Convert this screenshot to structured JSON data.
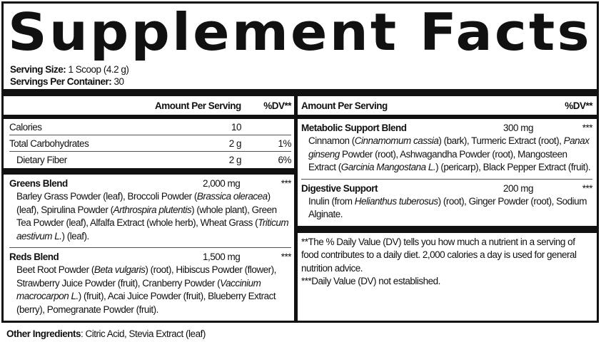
{
  "title": "Supplement Facts",
  "serving_size": {
    "label": "Serving Size:",
    "value": " 1 Scoop (4.2 g)"
  },
  "servings_per_container": {
    "label": "Servings Per Container:",
    "value": " 30"
  },
  "left": {
    "header": {
      "amount": "Amount Per Serving",
      "dv": "%DV**"
    },
    "rows": [
      {
        "name": "Calories",
        "amount": "10",
        "dv": ""
      },
      {
        "name": "Total Carbohydrates",
        "amount": "2 g",
        "dv": "1%"
      },
      {
        "name": "Dietary Fiber",
        "amount": "2 g",
        "dv": "6%"
      }
    ],
    "blends": [
      {
        "name": "Greens Blend",
        "amount": "2,000 mg",
        "dv": "***",
        "ingredients": [
          {
            "t": "Barley Grass Powder (leaf), Broccoli Powder ("
          },
          {
            "t": "Brassica oleracea",
            "i": true
          },
          {
            "t": ") (leaf), Spirulina Powder ("
          },
          {
            "t": "Arthrospira plutentis",
            "i": true
          },
          {
            "t": ") (whole plant), Green Tea Powder (leaf), Alfalfa Extract (whole herb), Wheat Grass ("
          },
          {
            "t": "Triticum aestivum L.",
            "i": true
          },
          {
            "t": ") (leaf)."
          }
        ]
      },
      {
        "name": "Reds Blend",
        "amount": "1,500 mg",
        "dv": "***",
        "ingredients": [
          {
            "t": "Beet Root Powder ("
          },
          {
            "t": "Beta vulgaris",
            "i": true
          },
          {
            "t": ") (root), Hibiscus Powder (flower), Strawberry Juice Powder (fruit), Cranberry Powder ("
          },
          {
            "t": "Vaccinium macrocarpon L.",
            "i": true
          },
          {
            "t": ") (fruit), Acai Juice Powder (fruit), Blueberry Extract (berry), Pomegranate Powder (fruit)."
          }
        ]
      }
    ]
  },
  "right": {
    "header": {
      "amount": "Amount Per Serving",
      "dv": "%DV**"
    },
    "blends": [
      {
        "name": "Metabolic Support Blend",
        "amount": "300 mg",
        "dv": "***",
        "ingredients": [
          {
            "t": "Cinnamon ("
          },
          {
            "t": "Cinnamomum cassia",
            "i": true
          },
          {
            "t": ") (bark), Turmeric Extract (root), "
          },
          {
            "t": "Panax ginseng",
            "i": true
          },
          {
            "t": " Powder (root), Ashwagandha Powder (root), Mangosteen Extract ("
          },
          {
            "t": "Garcinia Mangostana L.",
            "i": true
          },
          {
            "t": ") (pericarp), Black Pepper Extract (fruit)."
          }
        ]
      },
      {
        "name": "Digestive Support",
        "amount": "200 mg",
        "dv": "***",
        "ingredients": [
          {
            "t": "Inulin (from "
          },
          {
            "t": "Helianthus tuberosus",
            "i": true
          },
          {
            "t": ") (root), Ginger Powder (root), Sodium Alginate."
          }
        ]
      }
    ],
    "footnote_dv": "**The % Daily Value (DV) tells you how much a nutrient in a serving of food contributes to a daily diet. 2,000 calories a day is used for general nutrition advice.",
    "footnote_na": "***Daily Value (DV) not established."
  },
  "other_ingredients": {
    "label": "Other Ingredients",
    "value": ": Citric Acid, Stevia Extract (leaf)"
  }
}
